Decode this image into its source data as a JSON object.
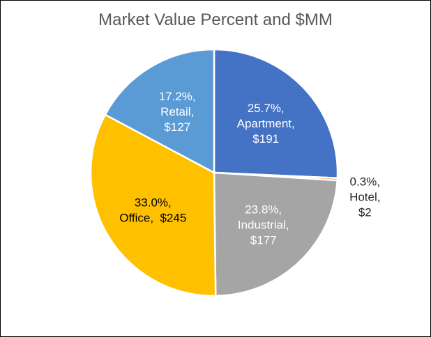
{
  "chart_data": {
    "type": "pie",
    "title": "Market Value Percent and $MM",
    "start_angle_deg": 0,
    "direction": "clockwise",
    "slices": [
      {
        "name": "Apartment",
        "percent": 25.7,
        "value": 191,
        "color": "#4472C4",
        "label_color": "#FFFFFF",
        "label_lines": [
          "25.7%,",
          "Apartment,",
          "$191"
        ],
        "label_position": "inside"
      },
      {
        "name": "Hotel",
        "percent": 0.3,
        "value": 2,
        "color": "#ED7D31",
        "label_color": "#262626",
        "label_lines": [
          "0.3%,",
          "Hotel,",
          "$2"
        ],
        "label_position": "outside"
      },
      {
        "name": "Industrial",
        "percent": 23.8,
        "value": 177,
        "color": "#A5A5A5",
        "label_color": "#FFFFFF",
        "label_lines": [
          "23.8%,",
          "Industrial,",
          "$177"
        ],
        "label_position": "inside"
      },
      {
        "name": "Office",
        "percent": 33.0,
        "value": 245,
        "color": "#FFC000",
        "label_color": "#000000",
        "label_lines": [
          "33.0%,",
          "Office,  $245"
        ],
        "label_position": "inside"
      },
      {
        "name": "Retail",
        "percent": 17.2,
        "value": 127,
        "color": "#5B9BD5",
        "label_color": "#FFFFFF",
        "label_lines": [
          "17.2%,",
          "Retail,",
          "$127"
        ],
        "label_position": "inside"
      }
    ]
  }
}
